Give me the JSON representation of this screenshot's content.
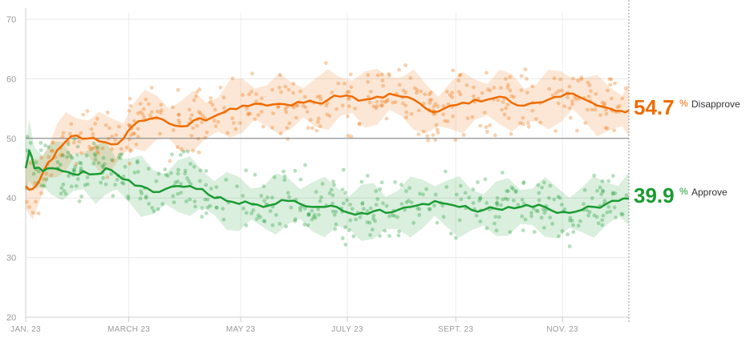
{
  "chart_data": {
    "type": "line",
    "title": "",
    "xlabel": "",
    "ylabel": "",
    "ylim": [
      20,
      70
    ],
    "yticks": [
      20,
      30,
      40,
      50,
      60,
      70
    ],
    "x_range": [
      "2023-01-20",
      "2023-12-31"
    ],
    "x_ticks": [
      {
        "date": "2023-01-20",
        "label": "JAN. 23"
      },
      {
        "date": "2023-03-20",
        "label": "MARCH 23"
      },
      {
        "date": "2023-05-23",
        "label": "MAY 23"
      },
      {
        "date": "2023-07-23",
        "label": "JULY 23"
      },
      {
        "date": "2023-09-23",
        "label": "SEPT. 23"
      },
      {
        "date": "2023-11-23",
        "label": "NOV. 23"
      }
    ],
    "reference_line": 50,
    "grid": true,
    "series": [
      {
        "name": "Disapprove",
        "color": "#ef6c00",
        "end_value": "54.7",
        "end_value_suffix": "%",
        "band_width": 4.5,
        "points": [
          [
            "2023-01-20",
            42
          ],
          [
            "2023-01-24",
            41.5
          ],
          [
            "2023-01-28",
            43
          ],
          [
            "2023-02-02",
            46
          ],
          [
            "2023-02-07",
            48
          ],
          [
            "2023-02-12",
            49.5
          ],
          [
            "2023-02-18",
            50.5
          ],
          [
            "2023-02-25",
            50
          ],
          [
            "2023-03-03",
            49.5
          ],
          [
            "2023-03-10",
            49
          ],
          [
            "2023-03-17",
            50
          ],
          [
            "2023-03-22",
            52
          ],
          [
            "2023-03-29",
            53
          ],
          [
            "2023-04-05",
            53.5
          ],
          [
            "2023-04-12",
            52.5
          ],
          [
            "2023-04-19",
            52
          ],
          [
            "2023-04-26",
            53
          ],
          [
            "2023-05-03",
            53
          ],
          [
            "2023-05-10",
            54
          ],
          [
            "2023-05-17",
            55
          ],
          [
            "2023-05-24",
            55.5
          ],
          [
            "2023-05-31",
            55.8
          ],
          [
            "2023-06-07",
            55.5
          ],
          [
            "2023-06-14",
            55.8
          ],
          [
            "2023-06-21",
            55.5
          ],
          [
            "2023-06-28",
            56
          ],
          [
            "2023-07-05",
            56
          ],
          [
            "2023-07-12",
            56.5
          ],
          [
            "2023-07-19",
            57
          ],
          [
            "2023-07-26",
            57
          ],
          [
            "2023-08-02",
            56.5
          ],
          [
            "2023-08-09",
            57
          ],
          [
            "2023-08-16",
            57.5
          ],
          [
            "2023-08-23",
            57
          ],
          [
            "2023-08-30",
            56.5
          ],
          [
            "2023-09-06",
            55
          ],
          [
            "2023-09-13",
            54.5
          ],
          [
            "2023-09-20",
            55.5
          ],
          [
            "2023-09-27",
            56
          ],
          [
            "2023-10-04",
            56.5
          ],
          [
            "2023-10-11",
            56.5
          ],
          [
            "2023-10-18",
            57
          ],
          [
            "2023-10-25",
            56
          ],
          [
            "2023-11-01",
            55.5
          ],
          [
            "2023-11-08",
            56
          ],
          [
            "2023-11-15",
            56.5
          ],
          [
            "2023-11-22",
            57
          ],
          [
            "2023-11-29",
            57.5
          ],
          [
            "2023-12-06",
            56.5
          ],
          [
            "2023-12-13",
            55.5
          ],
          [
            "2023-12-20",
            55
          ],
          [
            "2023-12-27",
            54.6
          ],
          [
            "2023-12-31",
            54.7
          ]
        ]
      },
      {
        "name": "Approve",
        "color": "#1a9b32",
        "end_value": "39.9",
        "end_value_suffix": "%",
        "band_width": 4.5,
        "points": [
          [
            "2023-01-20",
            45
          ],
          [
            "2023-01-22",
            48
          ],
          [
            "2023-01-25",
            45
          ],
          [
            "2023-01-30",
            44.5
          ],
          [
            "2023-02-04",
            45
          ],
          [
            "2023-02-10",
            44.5
          ],
          [
            "2023-02-16",
            44
          ],
          [
            "2023-02-22",
            44.5
          ],
          [
            "2023-03-01",
            44
          ],
          [
            "2023-03-07",
            45
          ],
          [
            "2023-03-13",
            44
          ],
          [
            "2023-03-20",
            43
          ],
          [
            "2023-03-27",
            42
          ],
          [
            "2023-04-03",
            41
          ],
          [
            "2023-04-10",
            41.5
          ],
          [
            "2023-04-17",
            42
          ],
          [
            "2023-04-24",
            42
          ],
          [
            "2023-05-01",
            41.5
          ],
          [
            "2023-05-08",
            40
          ],
          [
            "2023-05-15",
            39.5
          ],
          [
            "2023-05-22",
            39
          ],
          [
            "2023-05-29",
            39
          ],
          [
            "2023-06-05",
            38.5
          ],
          [
            "2023-06-12",
            39
          ],
          [
            "2023-06-19",
            39.5
          ],
          [
            "2023-06-26",
            39
          ],
          [
            "2023-07-03",
            38.5
          ],
          [
            "2023-07-10",
            38.5
          ],
          [
            "2023-07-17",
            38.5
          ],
          [
            "2023-07-24",
            37.5
          ],
          [
            "2023-07-31",
            37.5
          ],
          [
            "2023-08-07",
            37.8
          ],
          [
            "2023-08-14",
            37.5
          ],
          [
            "2023-08-21",
            38
          ],
          [
            "2023-08-28",
            38.5
          ],
          [
            "2023-09-04",
            39
          ],
          [
            "2023-09-11",
            39.5
          ],
          [
            "2023-09-18",
            39
          ],
          [
            "2023-09-25",
            38.5
          ],
          [
            "2023-10-02",
            38
          ],
          [
            "2023-10-09",
            38
          ],
          [
            "2023-10-16",
            38.2
          ],
          [
            "2023-10-23",
            38.5
          ],
          [
            "2023-10-30",
            38.5
          ],
          [
            "2023-11-06",
            38.5
          ],
          [
            "2023-11-13",
            38.5
          ],
          [
            "2023-11-20",
            37.5
          ],
          [
            "2023-11-27",
            37.5
          ],
          [
            "2023-12-04",
            38
          ],
          [
            "2023-12-11",
            38.5
          ],
          [
            "2023-12-18",
            39
          ],
          [
            "2023-12-25",
            39.5
          ],
          [
            "2023-12-31",
            39.9
          ]
        ]
      }
    ]
  }
}
